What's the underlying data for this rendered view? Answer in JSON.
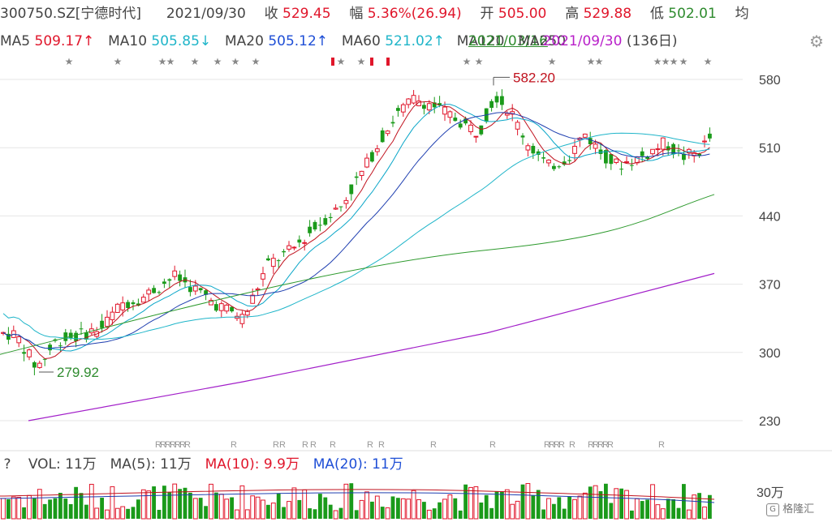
{
  "header": {
    "code": "300750.SZ[宁德时代]",
    "date": "2021/09/30",
    "close_label": "收",
    "close_value": "529.45",
    "change_label": "幅",
    "change_value": "5.36%(26.94)",
    "open_label": "开",
    "open_value": "505.00",
    "high_label": "高",
    "high_value": "529.88",
    "low_label": "低",
    "low_value": "502.01",
    "avg_label": "均"
  },
  "ma_row": {
    "ma5_label": "MA5",
    "ma5_value": "509.17↑",
    "ma10_label": "MA10",
    "ma10_value": "505.85↓",
    "ma20_label": "MA20",
    "ma20_value": "505.12↑",
    "ma60_label": "MA60",
    "ma60_value": "521.02↑",
    "ma120_overlap": "MA120",
    "ma120_value": "2021/03/16",
    "ma250_label": "MA250",
    "ma250_value": "2021/09/30",
    "days": "(136日)"
  },
  "price_axis": {
    "ticks": [
      "580",
      "510",
      "440",
      "370",
      "300",
      "230"
    ]
  },
  "annotations": {
    "high_label": "582.20",
    "low_label": "279.92"
  },
  "vol_row": {
    "help": "?",
    "vol_label": "VOL:",
    "vol_value": "11万",
    "ma5_label": "MA(5):",
    "ma5_value": "11万",
    "ma10_label": "MA(10):",
    "ma10_value": "9.9万",
    "ma20_label": "MA(20):",
    "ma20_value": "11万"
  },
  "vol_axis": {
    "tick": "30万"
  },
  "watermark": "格隆汇",
  "colors": {
    "up": "#e0162b",
    "down": "#1a9a1a",
    "ma5": "#c0121e",
    "ma10": "#1fb5c9",
    "ma20": "#1f3fb0",
    "ma60": "#1fb5c9",
    "ma120": "#2e9a2e",
    "ma250": "#a21fc9"
  },
  "icons": {
    "settings": "gear-icon"
  }
}
